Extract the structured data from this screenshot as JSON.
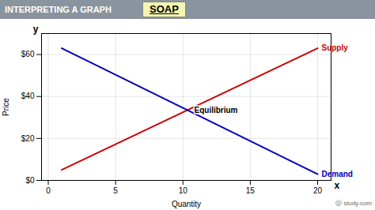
{
  "chart_data": {
    "type": "line",
    "title": "INTERPRETING A GRAPH",
    "xlabel": "Quantity",
    "ylabel": "Price",
    "x": [
      1,
      20
    ],
    "series": [
      {
        "name": "Supply",
        "color": "#cc0000",
        "values": [
          5,
          63
        ]
      },
      {
        "name": "Demand",
        "color": "#0000bb",
        "values": [
          63,
          3
        ]
      }
    ],
    "xlim": [
      -0.5,
      21
    ],
    "xticks": [
      0,
      5,
      10,
      15,
      20
    ],
    "ylim": [
      0,
      70
    ],
    "yticks": [
      {
        "value": 0,
        "label": "$0"
      },
      {
        "value": 20,
        "label": "$20"
      },
      {
        "value": 40,
        "label": "$40"
      },
      {
        "value": 60,
        "label": "$60"
      }
    ],
    "grid": true,
    "annotations": [
      "Equilibrium",
      "SOAP",
      "x",
      "y",
      "ⓞ study.com"
    ]
  }
}
